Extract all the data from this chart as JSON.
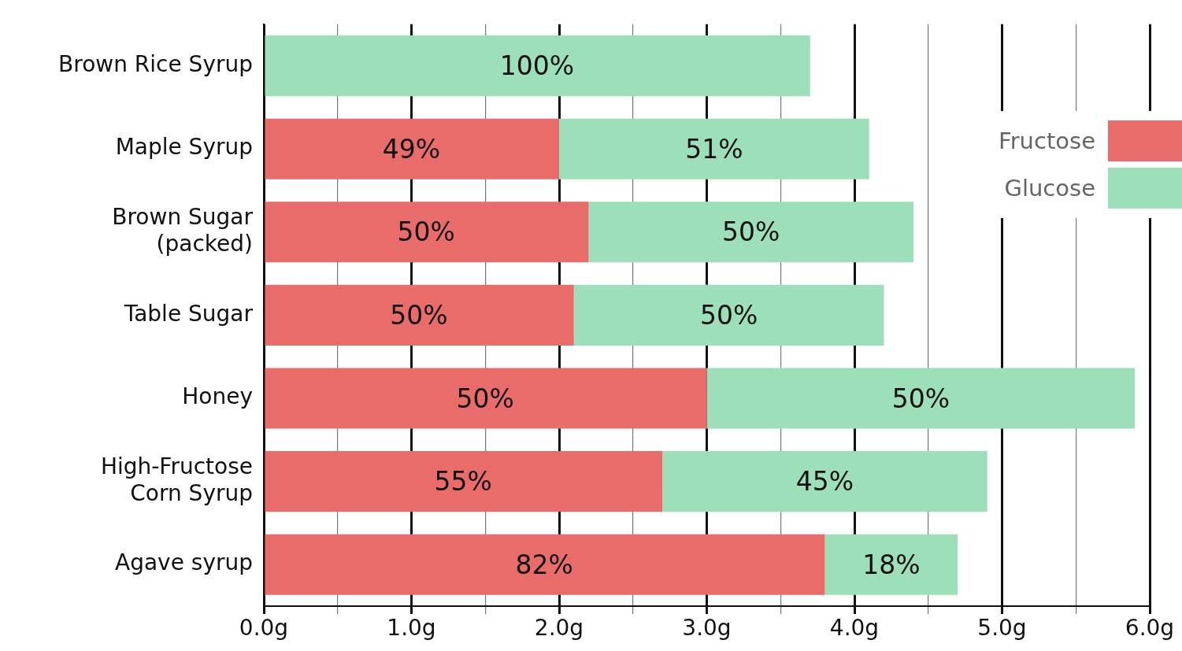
{
  "chart_data": {
    "type": "bar",
    "orientation": "horizontal",
    "stacked": true,
    "categories": [
      "Brown Rice Syrup",
      "Maple Syrup",
      "Brown Sugar\n(packed)",
      "Table Sugar",
      "Honey",
      "High-Fructose\nCorn Syrup",
      "Agave syrup"
    ],
    "series": [
      {
        "name": "Fructose",
        "color": "#e76c6a",
        "values": [
          0,
          2.0,
          2.2,
          2.1,
          3.0,
          2.7,
          3.8
        ]
      },
      {
        "name": "Glucose",
        "color": "#9ddfb9",
        "values": [
          3.7,
          2.1,
          2.2,
          2.1,
          2.9,
          2.2,
          0.9
        ]
      }
    ],
    "annotations": [
      {
        "text": "100%",
        "x": 1.85,
        "y": "Brown Rice Syrup"
      },
      {
        "text": "49%",
        "x": 1.0,
        "y": "Maple Syrup"
      },
      {
        "text": "51%",
        "x": 3.05,
        "y": "Maple Syrup"
      },
      {
        "text": "50%",
        "x": 1.1,
        "y": "Brown Sugar\n(packed)"
      },
      {
        "text": "50%",
        "x": 3.3,
        "y": "Brown Sugar\n(packed)"
      },
      {
        "text": "50%",
        "x": 1.05,
        "y": "Table Sugar"
      },
      {
        "text": "50%",
        "x": 3.15,
        "y": "Table Sugar"
      },
      {
        "text": "50%",
        "x": 1.5,
        "y": "Honey"
      },
      {
        "text": "50%",
        "x": 4.45,
        "y": "Honey"
      },
      {
        "text": "55%",
        "x": 1.35,
        "y": "High-Fructose\nCorn Syrup"
      },
      {
        "text": "45%",
        "x": 3.8,
        "y": "High-Fructose\nCorn Syrup"
      },
      {
        "text": "82%",
        "x": 1.9,
        "y": "Agave syrup"
      },
      {
        "text": "18%",
        "x": 4.25,
        "y": "Agave syrup"
      }
    ],
    "xlim": [
      0,
      6
    ],
    "xticks": [
      {
        "value": 0,
        "label": "0.0g"
      },
      {
        "value": 0.5,
        "label": null
      },
      {
        "value": 1,
        "label": "1.0g"
      },
      {
        "value": 1.5,
        "label": null
      },
      {
        "value": 2,
        "label": "2.0g"
      },
      {
        "value": 2.5,
        "label": null
      },
      {
        "value": 3,
        "label": "3.0g"
      },
      {
        "value": 3.5,
        "label": null
      },
      {
        "value": 4,
        "label": "4.0g"
      },
      {
        "value": 4.5,
        "label": null
      },
      {
        "value": 5,
        "label": "5.0g"
      },
      {
        "value": 5.5,
        "label": null
      },
      {
        "value": 6,
        "label": "6.0g"
      }
    ],
    "grid": "x",
    "legend": "top right"
  }
}
